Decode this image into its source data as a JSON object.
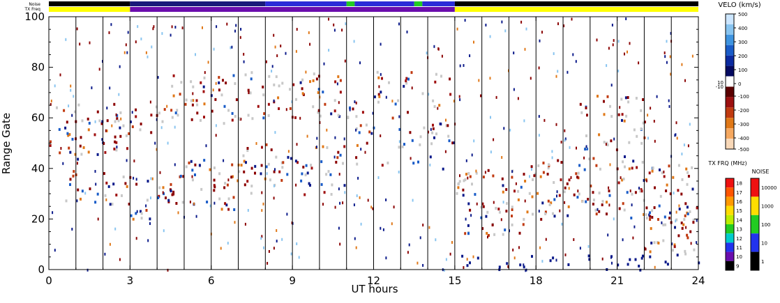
{
  "chart_data": {
    "type": "heatmap",
    "xlabel": "UT hours",
    "ylabel": "Range Gate",
    "xlim": [
      0,
      24
    ],
    "ylim": [
      0,
      100
    ],
    "x_ticks": [
      "0",
      "3",
      "6",
      "9",
      "12",
      "15",
      "18",
      "21",
      "24"
    ],
    "y_ticks": [
      "0",
      "20",
      "40",
      "60",
      "80",
      "100"
    ],
    "scan_boundaries_hours": [
      1,
      2,
      3,
      4,
      5,
      6,
      7,
      8,
      9,
      10,
      11,
      12,
      13,
      14,
      15,
      16,
      17,
      18,
      19,
      20,
      21,
      22,
      23
    ],
    "status_bars": {
      "noise_label": "Noise",
      "txfreq_label": "TX Freq",
      "noise_segments": [
        {
          "start": 0,
          "end": 3,
          "color": "#000000"
        },
        {
          "start": 3,
          "end": 8,
          "color": "#1a1a7a"
        },
        {
          "start": 8,
          "end": 11,
          "color": "#2b2bd8"
        },
        {
          "start": 11,
          "end": 11.3,
          "color": "#22cc22"
        },
        {
          "start": 11.3,
          "end": 13.5,
          "color": "#2b2bd8"
        },
        {
          "start": 13.5,
          "end": 13.8,
          "color": "#22cc22"
        },
        {
          "start": 13.8,
          "end": 15,
          "color": "#2b2bd8"
        },
        {
          "start": 15,
          "end": 24,
          "color": "#000000"
        }
      ],
      "txfreq_segments": [
        {
          "start": 0,
          "end": 3,
          "color": "#ffff00"
        },
        {
          "start": 3,
          "end": 15,
          "color": "#6a0dad"
        },
        {
          "start": 15,
          "end": 24,
          "color": "#ffff00"
        }
      ]
    },
    "velocity_colorbar": {
      "title": "VELO (km/s)",
      "tick_labels": [
        "500",
        "400",
        "300",
        "200",
        "100",
        "10",
        "0",
        "-10",
        "-100",
        "-200",
        "-300",
        "-400",
        "-500"
      ],
      "colors_top_to_bottom": [
        "#cce6ff",
        "#88c4f0",
        "#3f94e0",
        "#1a5cc8",
        "#0b2aa0",
        "#050a60",
        "#ffffff",
        "#5a0000",
        "#9c1010",
        "#c03a10",
        "#e07818",
        "#f5a860",
        "#f8d8b8"
      ]
    },
    "txfreq_colorbar": {
      "title": "TX FRQ (MHz)",
      "tick_labels": [
        "18",
        "17",
        "16",
        "15",
        "14",
        "13",
        "12",
        "11",
        "10",
        "9"
      ],
      "colors_top_to_bottom": [
        "#ee1111",
        "#ff5500",
        "#ff9900",
        "#ffdd00",
        "#bbee00",
        "#22cc22",
        "#00cccc",
        "#2233ee",
        "#6a0dad",
        "#000000"
      ]
    },
    "noise_colorbar": {
      "title": "NOISE",
      "tick_labels": [
        "10000",
        "1000",
        "100",
        "10",
        "1"
      ],
      "colors_top_to_bottom": [
        "#ee1111",
        "#ffdd00",
        "#22cc22",
        "#2233ee",
        "#000000"
      ]
    },
    "echo_bands": [
      {
        "start": 0,
        "end": 3,
        "y_min": 44,
        "y_max": 66,
        "intensity": 1.0
      },
      {
        "start": 0,
        "end": 3,
        "y_min": 26,
        "y_max": 40,
        "intensity": 0.7
      },
      {
        "start": 3,
        "end": 4.5,
        "y_min": 54,
        "y_max": 66,
        "intensity": 0.8
      },
      {
        "start": 3,
        "end": 4.5,
        "y_min": 20,
        "y_max": 38,
        "intensity": 0.9
      },
      {
        "start": 4.5,
        "end": 7,
        "y_min": 58,
        "y_max": 78,
        "intensity": 1.0
      },
      {
        "start": 4.5,
        "end": 7,
        "y_min": 24,
        "y_max": 44,
        "intensity": 1.0
      },
      {
        "start": 7,
        "end": 11,
        "y_min": 60,
        "y_max": 80,
        "intensity": 0.8
      },
      {
        "start": 7,
        "end": 11,
        "y_min": 30,
        "y_max": 50,
        "intensity": 0.9
      },
      {
        "start": 11,
        "end": 15,
        "y_min": 40,
        "y_max": 80,
        "intensity": 0.5
      },
      {
        "start": 15,
        "end": 17.5,
        "y_min": 14,
        "y_max": 40,
        "intensity": 1.0
      },
      {
        "start": 17.5,
        "end": 20,
        "y_min": 20,
        "y_max": 44,
        "intensity": 1.0
      },
      {
        "start": 19.5,
        "end": 22,
        "y_min": 40,
        "y_max": 70,
        "intensity": 0.8
      },
      {
        "start": 20,
        "end": 24,
        "y_min": 20,
        "y_max": 42,
        "intensity": 0.9
      },
      {
        "start": 22,
        "end": 24,
        "y_min": 6,
        "y_max": 26,
        "intensity": 1.0
      },
      {
        "start": 15,
        "end": 24,
        "y_min": 0,
        "y_max": 6,
        "intensity": 0.6
      }
    ]
  }
}
